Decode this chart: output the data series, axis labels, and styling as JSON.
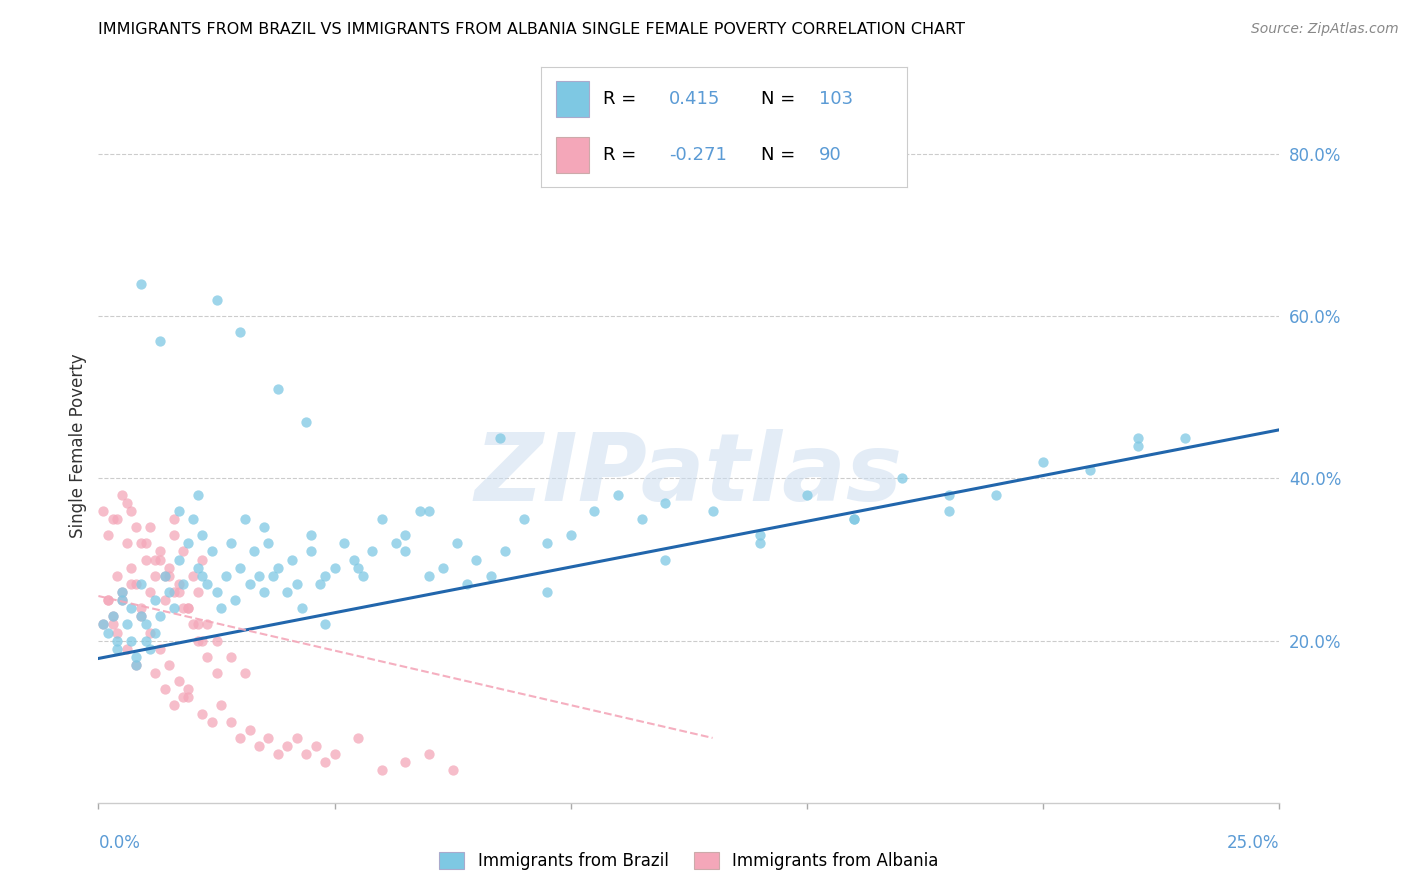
{
  "title": "IMMIGRANTS FROM BRAZIL VS IMMIGRANTS FROM ALBANIA SINGLE FEMALE POVERTY CORRELATION CHART",
  "source": "Source: ZipAtlas.com",
  "ylabel": "Single Female Poverty",
  "legend_label_brazil": "Immigrants from Brazil",
  "legend_label_albania": "Immigrants from Albania",
  "color_brazil": "#7ec8e3",
  "color_albania": "#f4a7b9",
  "color_line_brazil": "#2166ac",
  "color_line_albania": "#f4a7b9",
  "watermark": "ZIPatlas",
  "xmin": 0.0,
  "xmax": 0.25,
  "ymin": 0.0,
  "ymax": 0.88,
  "brazil_line_x": [
    0.0,
    0.25
  ],
  "brazil_line_y": [
    0.178,
    0.46
  ],
  "albania_line_x": [
    0.0,
    0.13
  ],
  "albania_line_y": [
    0.255,
    0.08
  ],
  "brazil_x": [
    0.001,
    0.002,
    0.003,
    0.004,
    0.005,
    0.005,
    0.006,
    0.007,
    0.007,
    0.008,
    0.009,
    0.009,
    0.01,
    0.01,
    0.011,
    0.012,
    0.012,
    0.013,
    0.014,
    0.015,
    0.016,
    0.017,
    0.018,
    0.019,
    0.02,
    0.021,
    0.022,
    0.022,
    0.023,
    0.024,
    0.025,
    0.026,
    0.027,
    0.028,
    0.029,
    0.03,
    0.031,
    0.032,
    0.033,
    0.034,
    0.035,
    0.036,
    0.037,
    0.038,
    0.04,
    0.041,
    0.042,
    0.043,
    0.045,
    0.047,
    0.048,
    0.05,
    0.052,
    0.054,
    0.056,
    0.058,
    0.06,
    0.063,
    0.065,
    0.068,
    0.07,
    0.073,
    0.076,
    0.08,
    0.083,
    0.086,
    0.09,
    0.095,
    0.1,
    0.105,
    0.11,
    0.115,
    0.12,
    0.13,
    0.14,
    0.15,
    0.16,
    0.17,
    0.18,
    0.19,
    0.2,
    0.21,
    0.22,
    0.23,
    0.025,
    0.03,
    0.038,
    0.044,
    0.009,
    0.013,
    0.017,
    0.021,
    0.035,
    0.07,
    0.085,
    0.055,
    0.045,
    0.065,
    0.048,
    0.078,
    0.095,
    0.12,
    0.14,
    0.16,
    0.18,
    0.22,
    0.004,
    0.008
  ],
  "brazil_y": [
    0.22,
    0.21,
    0.23,
    0.19,
    0.25,
    0.26,
    0.22,
    0.2,
    0.24,
    0.18,
    0.27,
    0.23,
    0.2,
    0.22,
    0.19,
    0.21,
    0.25,
    0.23,
    0.28,
    0.26,
    0.24,
    0.3,
    0.27,
    0.32,
    0.35,
    0.29,
    0.28,
    0.33,
    0.27,
    0.31,
    0.26,
    0.24,
    0.28,
    0.32,
    0.25,
    0.29,
    0.35,
    0.27,
    0.31,
    0.28,
    0.26,
    0.32,
    0.28,
    0.29,
    0.26,
    0.3,
    0.27,
    0.24,
    0.31,
    0.27,
    0.28,
    0.29,
    0.32,
    0.3,
    0.28,
    0.31,
    0.35,
    0.32,
    0.33,
    0.36,
    0.28,
    0.29,
    0.32,
    0.3,
    0.28,
    0.31,
    0.35,
    0.32,
    0.33,
    0.36,
    0.38,
    0.35,
    0.37,
    0.36,
    0.33,
    0.38,
    0.35,
    0.4,
    0.36,
    0.38,
    0.42,
    0.41,
    0.44,
    0.45,
    0.62,
    0.58,
    0.51,
    0.47,
    0.64,
    0.57,
    0.36,
    0.38,
    0.34,
    0.36,
    0.45,
    0.29,
    0.33,
    0.31,
    0.22,
    0.27,
    0.26,
    0.3,
    0.32,
    0.35,
    0.38,
    0.45,
    0.2,
    0.17
  ],
  "albania_x": [
    0.001,
    0.002,
    0.003,
    0.004,
    0.005,
    0.006,
    0.007,
    0.008,
    0.009,
    0.01,
    0.011,
    0.012,
    0.013,
    0.014,
    0.015,
    0.016,
    0.017,
    0.018,
    0.019,
    0.02,
    0.021,
    0.022,
    0.003,
    0.005,
    0.007,
    0.009,
    0.011,
    0.013,
    0.015,
    0.017,
    0.019,
    0.021,
    0.002,
    0.004,
    0.006,
    0.008,
    0.01,
    0.012,
    0.014,
    0.016,
    0.018,
    0.02,
    0.022,
    0.001,
    0.003,
    0.005,
    0.007,
    0.009,
    0.011,
    0.013,
    0.015,
    0.017,
    0.019,
    0.021,
    0.023,
    0.025,
    0.002,
    0.004,
    0.006,
    0.008,
    0.012,
    0.014,
    0.016,
    0.018,
    0.022,
    0.024,
    0.026,
    0.028,
    0.03,
    0.032,
    0.034,
    0.036,
    0.038,
    0.04,
    0.042,
    0.044,
    0.046,
    0.048,
    0.05,
    0.055,
    0.06,
    0.065,
    0.07,
    0.075,
    0.023,
    0.025,
    0.028,
    0.031,
    0.019,
    0.016
  ],
  "albania_y": [
    0.22,
    0.25,
    0.23,
    0.28,
    0.26,
    0.32,
    0.29,
    0.27,
    0.24,
    0.3,
    0.26,
    0.28,
    0.31,
    0.25,
    0.29,
    0.33,
    0.27,
    0.31,
    0.24,
    0.28,
    0.26,
    0.3,
    0.35,
    0.38,
    0.36,
    0.32,
    0.34,
    0.3,
    0.28,
    0.26,
    0.24,
    0.22,
    0.33,
    0.35,
    0.37,
    0.34,
    0.32,
    0.3,
    0.28,
    0.26,
    0.24,
    0.22,
    0.2,
    0.36,
    0.22,
    0.25,
    0.27,
    0.23,
    0.21,
    0.19,
    0.17,
    0.15,
    0.13,
    0.2,
    0.18,
    0.16,
    0.25,
    0.21,
    0.19,
    0.17,
    0.16,
    0.14,
    0.12,
    0.13,
    0.11,
    0.1,
    0.12,
    0.1,
    0.08,
    0.09,
    0.07,
    0.08,
    0.06,
    0.07,
    0.08,
    0.06,
    0.07,
    0.05,
    0.06,
    0.08,
    0.04,
    0.05,
    0.06,
    0.04,
    0.22,
    0.2,
    0.18,
    0.16,
    0.14,
    0.35
  ],
  "ytick_vals": [
    0.2,
    0.4,
    0.6,
    0.8
  ],
  "ytick_labels": [
    "20.0%",
    "40.0%",
    "60.0%",
    "80.0%"
  ],
  "xtick_positions": [
    0.0,
    0.05,
    0.1,
    0.15,
    0.2,
    0.25
  ]
}
